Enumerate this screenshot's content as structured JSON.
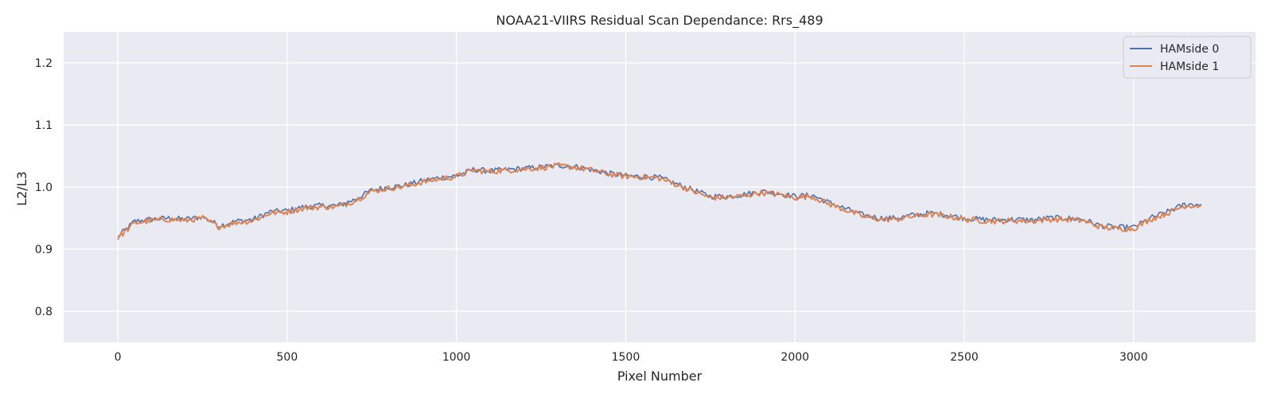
{
  "chart_data": {
    "type": "line",
    "title": "NOAA21-VIIRS Residual Scan Dependance: Rrs_489",
    "xlabel": "Pixel Number",
    "ylabel": "L2/L3",
    "xlim": [
      -160,
      3360
    ],
    "ylim": [
      0.75,
      1.25
    ],
    "x_ticks": [
      0,
      500,
      1000,
      1500,
      2000,
      2500,
      3000
    ],
    "x_tick_labels": [
      "0",
      "500",
      "1000",
      "1500",
      "2000",
      "2500",
      "3000"
    ],
    "y_ticks": [
      0.8,
      0.9,
      1.0,
      1.1,
      1.2
    ],
    "y_tick_labels": [
      "0.8",
      "0.9",
      "1.0",
      "1.1",
      "1.2"
    ],
    "grid": true,
    "legend_position": "top-right",
    "background_color": "#eaeaf2",
    "x": [
      0,
      50,
      100,
      150,
      200,
      250,
      300,
      350,
      400,
      450,
      500,
      550,
      600,
      650,
      700,
      750,
      800,
      850,
      900,
      950,
      1000,
      1050,
      1100,
      1150,
      1200,
      1250,
      1300,
      1350,
      1400,
      1450,
      1500,
      1550,
      1600,
      1650,
      1700,
      1750,
      1800,
      1850,
      1900,
      1950,
      2000,
      2050,
      2100,
      2150,
      2200,
      2250,
      2300,
      2350,
      2400,
      2450,
      2500,
      2550,
      2600,
      2650,
      2700,
      2750,
      2800,
      2850,
      2900,
      2950,
      3000,
      3050,
      3100,
      3150,
      3200
    ],
    "series": [
      {
        "name": "HAMside 0",
        "color": "#4c72b0",
        "values": [
          0.92,
          0.945,
          0.948,
          0.95,
          0.948,
          0.952,
          0.938,
          0.945,
          0.948,
          0.96,
          0.962,
          0.968,
          0.97,
          0.97,
          0.98,
          0.995,
          1.0,
          1.003,
          1.01,
          1.015,
          1.018,
          1.028,
          1.026,
          1.028,
          1.03,
          1.032,
          1.035,
          1.033,
          1.028,
          1.022,
          1.018,
          1.017,
          1.015,
          1.005,
          0.995,
          0.985,
          0.985,
          0.988,
          0.993,
          0.99,
          0.985,
          0.987,
          0.975,
          0.965,
          0.955,
          0.95,
          0.95,
          0.955,
          0.958,
          0.955,
          0.95,
          0.948,
          0.947,
          0.948,
          0.947,
          0.95,
          0.95,
          0.948,
          0.938,
          0.935,
          0.935,
          0.95,
          0.96,
          0.972,
          0.972
        ]
      },
      {
        "name": "HAMside 1",
        "color": "#dd8452",
        "values": [
          0.918,
          0.942,
          0.946,
          0.948,
          0.946,
          0.95,
          0.936,
          0.943,
          0.946,
          0.958,
          0.96,
          0.966,
          0.968,
          0.968,
          0.978,
          0.993,
          0.998,
          1.001,
          1.008,
          1.013,
          1.017,
          1.027,
          1.025,
          1.027,
          1.029,
          1.031,
          1.034,
          1.032,
          1.027,
          1.021,
          1.017,
          1.016,
          1.014,
          1.004,
          0.993,
          0.983,
          0.983,
          0.986,
          0.991,
          0.988,
          0.983,
          0.985,
          0.973,
          0.963,
          0.953,
          0.948,
          0.948,
          0.953,
          0.956,
          0.953,
          0.948,
          0.946,
          0.945,
          0.946,
          0.945,
          0.948,
          0.948,
          0.946,
          0.936,
          0.933,
          0.933,
          0.948,
          0.958,
          0.97,
          0.97
        ]
      }
    ]
  }
}
